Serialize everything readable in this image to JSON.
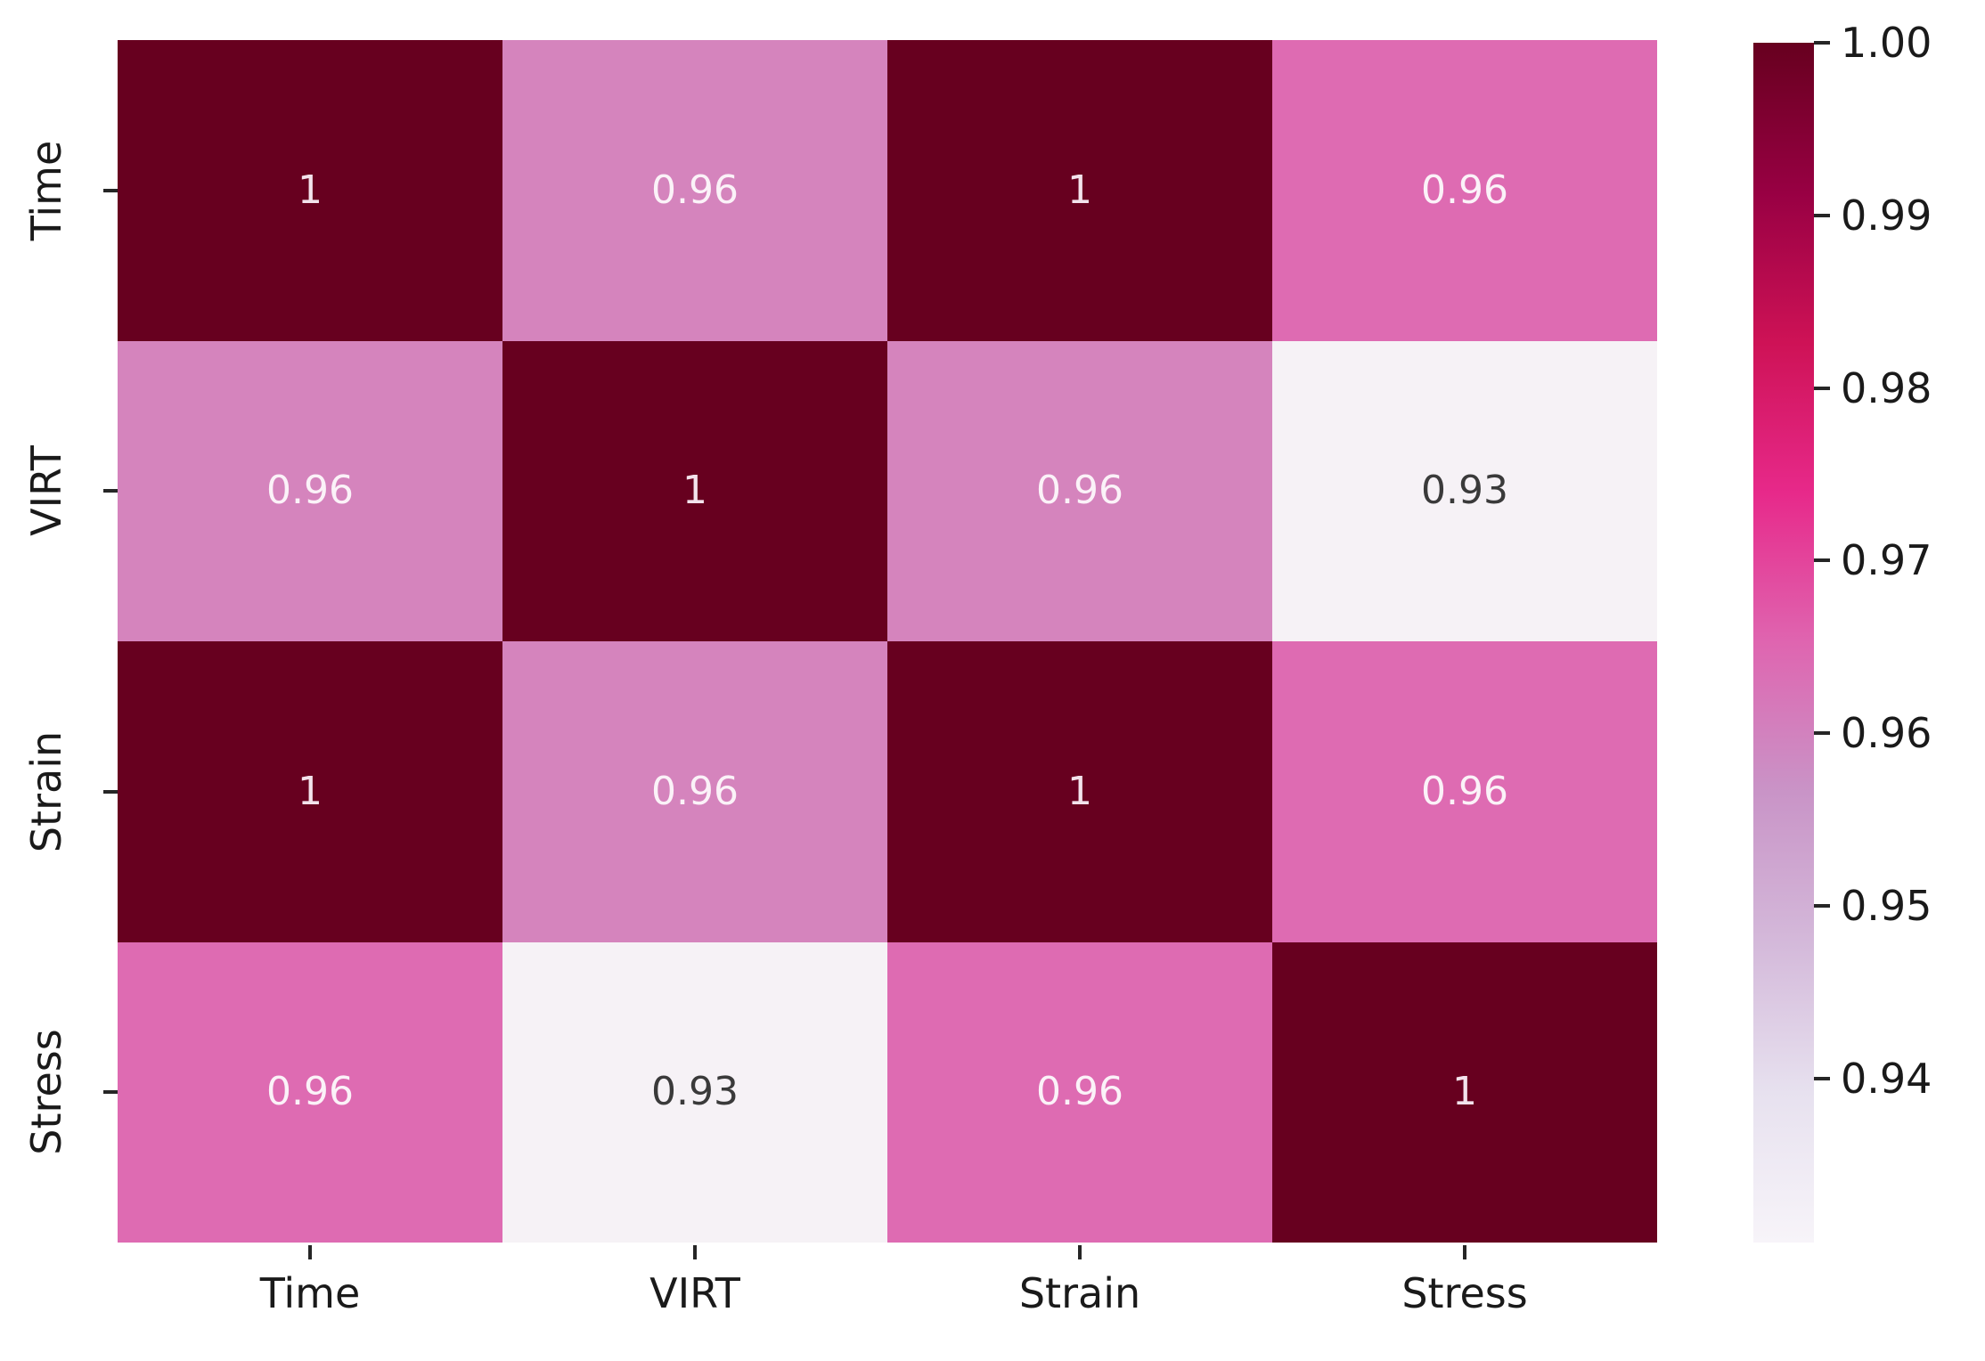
{
  "figure": {
    "background": "#ffffff",
    "axis_text_color": "#1a1a1a",
    "tick_mark_color": "#262626"
  },
  "chart_data": {
    "type": "heatmap",
    "title": "",
    "xlabel": "",
    "ylabel": "",
    "grid": false,
    "legend_position": "colorbar-right",
    "categories": [
      "Time",
      "VIRT",
      "Strain",
      "Stress"
    ],
    "x_tick_labels": [
      "Time",
      "VIRT",
      "Strain",
      "Stress"
    ],
    "y_tick_labels": [
      "Time",
      "VIRT",
      "Strain",
      "Stress"
    ],
    "matrix_display": [
      [
        "1",
        "0.96",
        "1",
        "0.96"
      ],
      [
        "0.96",
        "1",
        "0.96",
        "0.93"
      ],
      [
        "1",
        "0.96",
        "1",
        "0.96"
      ],
      [
        "0.96",
        "0.93",
        "0.96",
        "1"
      ]
    ],
    "matrix_values": [
      [
        1.0,
        0.96,
        1.0,
        0.96
      ],
      [
        0.96,
        1.0,
        0.96,
        0.93
      ],
      [
        1.0,
        0.96,
        1.0,
        0.96
      ],
      [
        0.96,
        0.93,
        0.96,
        1.0
      ]
    ],
    "cell_colors": [
      [
        "#67001f",
        "#d584bd",
        "#67001f",
        "#de6bb2"
      ],
      [
        "#d584bd",
        "#67001f",
        "#d584bd",
        "#f6f2f6"
      ],
      [
        "#67001f",
        "#d584bd",
        "#67001f",
        "#de6bb2"
      ],
      [
        "#de6bb2",
        "#f6f2f6",
        "#de6bb2",
        "#67001f"
      ]
    ],
    "cell_text_colors": [
      [
        "#f3e3ec",
        "#fbf2f8",
        "#f3e3ec",
        "#fbf2f8"
      ],
      [
        "#fbf2f8",
        "#f3e3ec",
        "#fbf2f8",
        "#3a3a3a"
      ],
      [
        "#f3e3ec",
        "#fbf2f8",
        "#f3e3ec",
        "#fbf2f8"
      ],
      [
        "#fbf2f8",
        "#3a3a3a",
        "#fbf2f8",
        "#f3e3ec"
      ]
    ],
    "colorbar": {
      "vmin": 0.9305,
      "vmax": 1.0,
      "colormap_name": "PuRd",
      "ticks": [
        {
          "label": "1.00",
          "value": 1.0
        },
        {
          "label": "0.99",
          "value": 0.99
        },
        {
          "label": "0.98",
          "value": 0.98
        },
        {
          "label": "0.97",
          "value": 0.97
        },
        {
          "label": "0.96",
          "value": 0.96
        },
        {
          "label": "0.95",
          "value": 0.95
        },
        {
          "label": "0.94",
          "value": 0.94
        }
      ],
      "gradient_stops": [
        {
          "pos": 0.0,
          "color": "#f7f4f9"
        },
        {
          "pos": 0.125,
          "color": "#e7e1ef"
        },
        {
          "pos": 0.25,
          "color": "#d4b9da"
        },
        {
          "pos": 0.375,
          "color": "#c994c7"
        },
        {
          "pos": 0.5,
          "color": "#df65b0"
        },
        {
          "pos": 0.625,
          "color": "#e7298a"
        },
        {
          "pos": 0.75,
          "color": "#ce1256"
        },
        {
          "pos": 0.875,
          "color": "#980043"
        },
        {
          "pos": 1.0,
          "color": "#67001f"
        }
      ]
    }
  }
}
